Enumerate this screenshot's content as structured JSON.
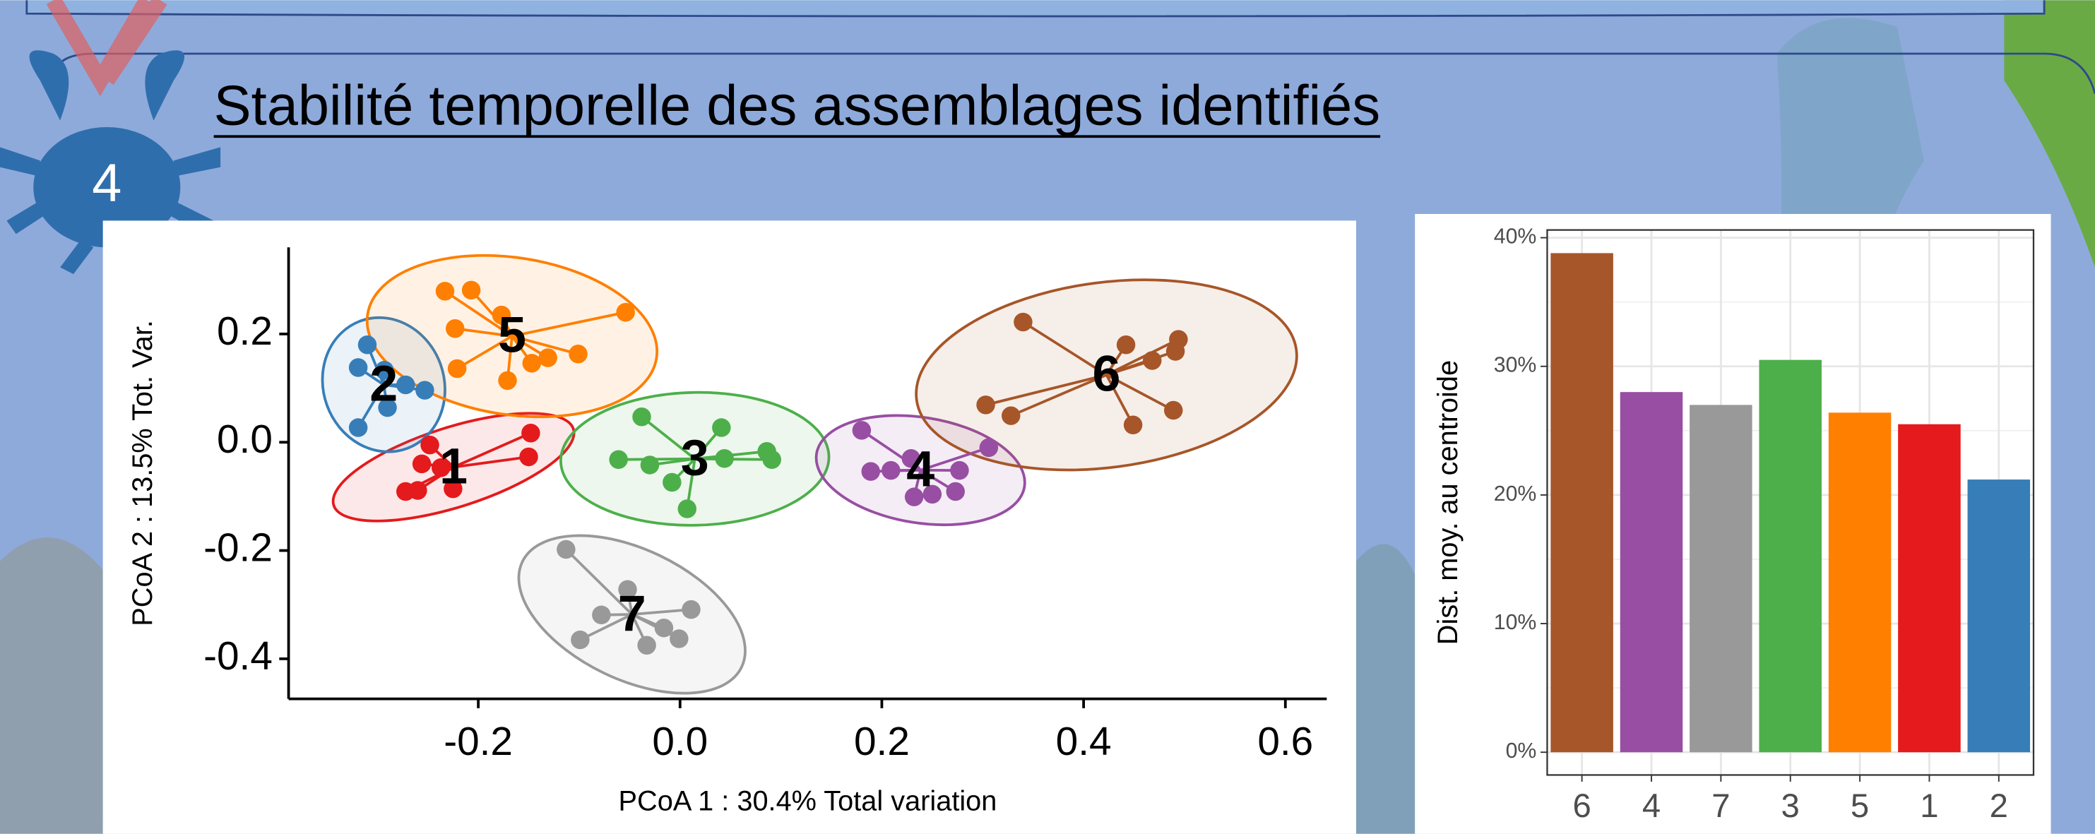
{
  "header": {
    "title": "Stabilité temporelle des assemblages identifiés",
    "badge": "4"
  },
  "chart_data": [
    {
      "type": "scatter",
      "xlabel": "PCoA 1 : 30.4% Total variation",
      "ylabel": "PCoA 2 : 13.5% Tot. Var.",
      "xlim": [
        -0.388,
        0.641
      ],
      "ylim": [
        -0.474,
        0.36
      ],
      "xticks": [
        -0.2,
        {
          "value": 0,
          "label": "0.0"
        },
        0.2,
        0.4,
        0.6
      ],
      "yticks": [
        0.2,
        {
          "value": 0,
          "label": "0.0"
        },
        -0.2,
        -0.4
      ],
      "grid": false,
      "series": [
        {
          "name": "1",
          "color": "#e41a1c",
          "x": [
            -0.248,
            -0.256,
            -0.237,
            -0.272,
            -0.26,
            -0.225,
            -0.148,
            -0.15
          ],
          "values": [
            -0.005,
            -0.04,
            -0.047,
            -0.091,
            -0.089,
            -0.086,
            0.017,
            -0.027
          ]
        },
        {
          "name": "2",
          "color": "#377eb8",
          "x": [
            -0.31,
            -0.319,
            -0.293,
            -0.272,
            -0.253,
            -0.29,
            -0.319
          ],
          "values": [
            0.18,
            0.138,
            0.133,
            0.106,
            0.096,
            0.064,
            0.027
          ]
        },
        {
          "name": "5",
          "color": "#ff7f00",
          "x": [
            -0.233,
            -0.207,
            -0.177,
            -0.223,
            -0.221,
            -0.171,
            -0.147,
            -0.101,
            -0.054,
            -0.131
          ],
          "values": [
            0.279,
            0.281,
            0.235,
            0.21,
            0.136,
            0.114,
            0.146,
            0.163,
            0.24,
            0.156
          ]
        },
        {
          "name": "3",
          "color": "#4daf4a",
          "x": [
            -0.038,
            -0.061,
            -0.03,
            -0.008,
            0.007,
            0.041,
            0.044,
            0.086,
            0.091
          ],
          "values": [
            0.047,
            -0.032,
            -0.042,
            -0.074,
            -0.123,
            0.027,
            -0.03,
            -0.017,
            -0.032
          ]
        },
        {
          "name": "4",
          "color": "#984ea3",
          "x": [
            0.18,
            0.189,
            0.209,
            0.229,
            0.232,
            0.25,
            0.273,
            0.306,
            0.277
          ],
          "values": [
            0.022,
            -0.054,
            -0.052,
            -0.03,
            -0.101,
            -0.096,
            -0.091,
            -0.01,
            -0.052
          ]
        },
        {
          "name": "6",
          "color": "#a65628",
          "x": [
            0.34,
            0.303,
            0.328,
            0.442,
            0.468,
            0.491,
            0.494,
            0.449,
            0.489
          ],
          "values": [
            0.222,
            0.069,
            0.049,
            0.18,
            0.151,
            0.168,
            0.19,
            0.032,
            0.059
          ]
        },
        {
          "name": "7",
          "color": "#999999",
          "x": [
            -0.113,
            -0.099,
            -0.078,
            -0.052,
            -0.033,
            -0.016,
            -0.001,
            0.011
          ],
          "values": [
            -0.198,
            -0.365,
            -0.319,
            -0.272,
            -0.375,
            -0.343,
            -0.363,
            -0.309
          ]
        }
      ]
    },
    {
      "type": "bar",
      "ylabel": "Dist. moy. au centroide",
      "categories": [
        "6",
        "4",
        "7",
        "3",
        "5",
        "1",
        "2"
      ],
      "values": [
        38.8,
        28,
        27,
        30.5,
        26.4,
        25.5,
        21.2
      ],
      "colors": [
        "#a65628",
        "#984ea3",
        "#999999",
        "#4daf4a",
        "#ff7f00",
        "#e41a1c",
        "#377eb8"
      ],
      "ylim": [
        -1.77,
        40.6
      ],
      "yticks": [
        {
          "value": 0,
          "label": "0%"
        },
        {
          "value": 10,
          "label": "10%"
        },
        {
          "value": 20,
          "label": "20%"
        },
        {
          "value": 30,
          "label": "30%"
        },
        {
          "value": 40,
          "label": "40%"
        }
      ],
      "grid": true
    }
  ]
}
